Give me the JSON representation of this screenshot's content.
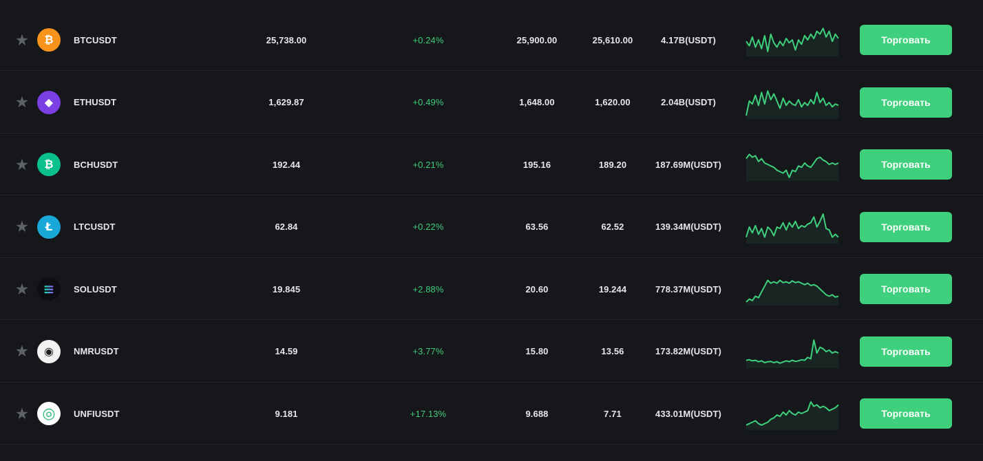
{
  "trade_label": "Торговать",
  "colors": {
    "accent": "#3fd07d",
    "positive": "#3ecb7a",
    "background": "#16171b"
  },
  "rows": [
    {
      "symbol": "BTCUSDT",
      "icon": "bitcoin-icon",
      "icon_glyph": "₿",
      "icon_color": "#f7931a",
      "price": "25,738.00",
      "change": "+0.24%",
      "high": "25,900.00",
      "low": "25,610.00",
      "volume": "4.17B(USDT)",
      "spark": [
        0.55,
        0.7,
        0.4,
        0.75,
        0.5,
        0.8,
        0.35,
        0.9,
        0.3,
        0.6,
        0.75,
        0.55,
        0.7,
        0.45,
        0.6,
        0.5,
        0.85,
        0.5,
        0.65,
        0.35,
        0.5,
        0.3,
        0.45,
        0.2,
        0.3,
        0.1,
        0.4,
        0.2,
        0.55,
        0.3,
        0.45
      ]
    },
    {
      "symbol": "ETHUSDT",
      "icon": "ethereum-icon",
      "icon_glyph": "◆",
      "icon_color": "#7b3fe4",
      "price": "1,629.87",
      "change": "+0.49%",
      "high": "1,648.00",
      "low": "1,620.00",
      "volume": "2.04B(USDT)",
      "spark": [
        0.95,
        0.45,
        0.55,
        0.25,
        0.6,
        0.15,
        0.55,
        0.1,
        0.4,
        0.2,
        0.45,
        0.7,
        0.35,
        0.6,
        0.45,
        0.55,
        0.6,
        0.4,
        0.65,
        0.5,
        0.6,
        0.4,
        0.55,
        0.15,
        0.5,
        0.35,
        0.6,
        0.5,
        0.65,
        0.55,
        0.6
      ]
    },
    {
      "symbol": "BCHUSDT",
      "icon": "bitcoin-cash-icon",
      "icon_glyph": "₿",
      "icon_color": "#0ac18e",
      "price": "192.44",
      "change": "+0.21%",
      "high": "195.16",
      "low": "189.20",
      "volume": "187.69M(USDT)",
      "spark": [
        0.3,
        0.15,
        0.25,
        0.2,
        0.4,
        0.3,
        0.45,
        0.5,
        0.55,
        0.6,
        0.7,
        0.75,
        0.8,
        0.7,
        0.95,
        0.7,
        0.75,
        0.55,
        0.6,
        0.45,
        0.55,
        0.6,
        0.45,
        0.3,
        0.25,
        0.35,
        0.4,
        0.5,
        0.45,
        0.5,
        0.45
      ]
    },
    {
      "symbol": "LTCUSDT",
      "icon": "litecoin-icon",
      "icon_glyph": "Ł",
      "icon_color": "#1aa8d8",
      "price": "62.84",
      "change": "+0.22%",
      "high": "63.56",
      "low": "62.52",
      "volume": "139.34M(USDT)",
      "spark": [
        0.85,
        0.5,
        0.7,
        0.45,
        0.75,
        0.55,
        0.85,
        0.5,
        0.6,
        0.8,
        0.5,
        0.55,
        0.35,
        0.6,
        0.35,
        0.5,
        0.3,
        0.55,
        0.45,
        0.5,
        0.4,
        0.35,
        0.15,
        0.5,
        0.3,
        0.05,
        0.55,
        0.6,
        0.85,
        0.75,
        0.85
      ]
    },
    {
      "symbol": "SOLUSDT",
      "icon": "solana-icon",
      "icon_glyph": "≡",
      "icon_color": "#0d0d12",
      "price": "19.845",
      "change": "+2.88%",
      "high": "20.60",
      "low": "19.244",
      "volume": "778.37M(USDT)",
      "spark": [
        0.95,
        0.85,
        0.9,
        0.75,
        0.8,
        0.6,
        0.4,
        0.2,
        0.3,
        0.25,
        0.3,
        0.2,
        0.28,
        0.25,
        0.3,
        0.22,
        0.28,
        0.25,
        0.3,
        0.35,
        0.3,
        0.38,
        0.35,
        0.4,
        0.5,
        0.6,
        0.7,
        0.75,
        0.7,
        0.78,
        0.75
      ]
    },
    {
      "symbol": "NMRUSDT",
      "icon": "numeraire-icon",
      "icon_glyph": "◉",
      "icon_color": "#f2f2f2",
      "price": "14.59",
      "change": "+3.77%",
      "high": "15.80",
      "low": "13.56",
      "volume": "173.82M(USDT)",
      "spark": [
        0.8,
        0.78,
        0.82,
        0.8,
        0.85,
        0.82,
        0.88,
        0.85,
        0.84,
        0.88,
        0.85,
        0.9,
        0.86,
        0.82,
        0.85,
        0.8,
        0.84,
        0.82,
        0.78,
        0.8,
        0.7,
        0.75,
        0.1,
        0.55,
        0.35,
        0.4,
        0.5,
        0.45,
        0.55,
        0.5,
        0.55
      ]
    },
    {
      "symbol": "UNFIUSDT",
      "icon": "unifi-icon",
      "icon_glyph": "◎",
      "icon_color": "#ffffff",
      "price": "9.181",
      "change": "+17.13%",
      "high": "9.688",
      "low": "7.71",
      "volume": "433.01M(USDT)",
      "spark": [
        0.9,
        0.85,
        0.8,
        0.75,
        0.85,
        0.9,
        0.85,
        0.8,
        0.7,
        0.65,
        0.55,
        0.6,
        0.45,
        0.55,
        0.4,
        0.5,
        0.55,
        0.45,
        0.5,
        0.45,
        0.4,
        0.1,
        0.25,
        0.2,
        0.3,
        0.25,
        0.3,
        0.4,
        0.35,
        0.3,
        0.2
      ]
    }
  ]
}
